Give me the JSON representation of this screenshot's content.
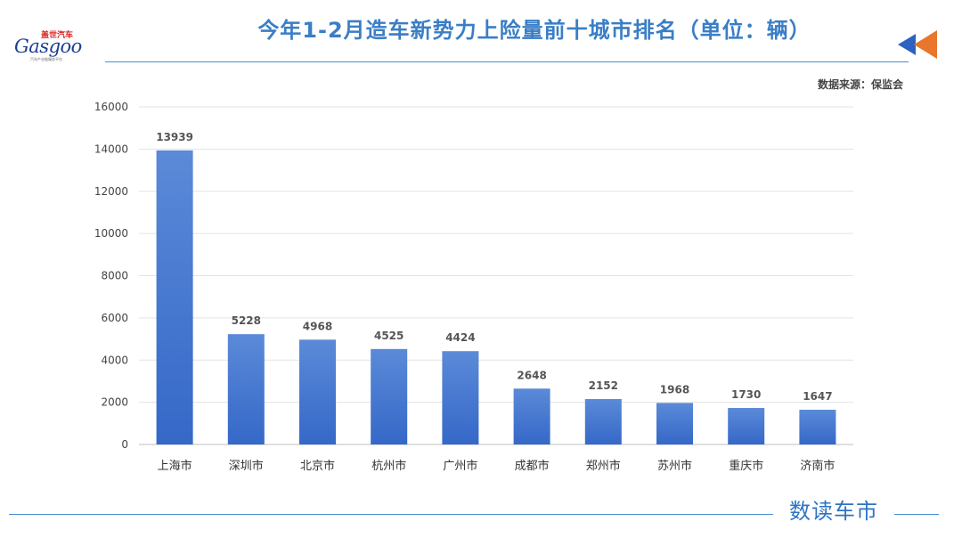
{
  "header": {
    "title": "今年1-2月造车新势力上险量前十城市排名（单位：辆）",
    "source": "数据来源：保监会"
  },
  "logo": {
    "cn_text": "盖世汽车",
    "en_text": "Gasgoo",
    "tagline": "汽车产业链服务平台"
  },
  "footer": {
    "brand": "数读车市"
  },
  "colors": {
    "bar": "#3568c8",
    "bar_light": "#5b8ad8",
    "title": "#3a7ec6",
    "accent_arrow": "#e8762c",
    "arrow_blue": "#2e62c0"
  },
  "chart_data": {
    "type": "bar",
    "categories": [
      "上海市",
      "深圳市",
      "北京市",
      "杭州市",
      "广州市",
      "成都市",
      "郑州市",
      "苏州市",
      "重庆市",
      "济南市"
    ],
    "values": [
      13939,
      5228,
      4968,
      4525,
      4424,
      2648,
      2152,
      1968,
      1730,
      1647
    ],
    "title": "今年1-2月造车新势力上险量前十城市排名（单位：辆）",
    "xlabel": "",
    "ylabel": "",
    "ylim": [
      0,
      16000
    ],
    "yticks": [
      0,
      2000,
      4000,
      6000,
      8000,
      10000,
      12000,
      14000,
      16000
    ],
    "grid": true,
    "data_labels": true,
    "legend": "none"
  }
}
